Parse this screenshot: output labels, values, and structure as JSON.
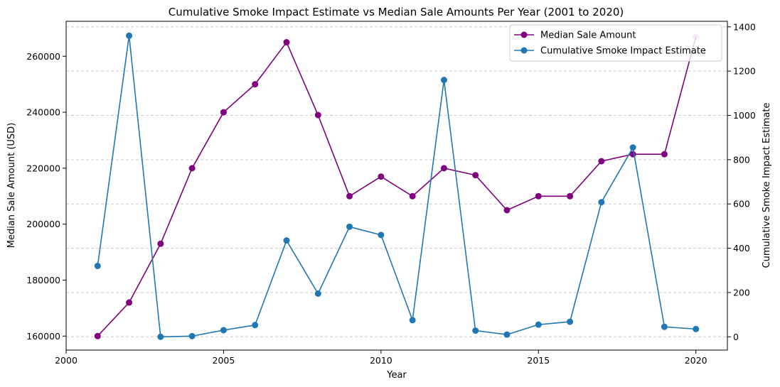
{
  "chart_data": {
    "type": "line",
    "title": "Cumulative Smoke Impact Estimate vs Median Sale Amounts Per Year (2001 to 2020)",
    "xlabel": "Year",
    "ylabel_left": "Median Sale Amount (USD)",
    "ylabel_right": "Cumulative Smoke Impact Estimate",
    "xlim": [
      2000,
      2021
    ],
    "ylim_left": [
      155000,
      272500
    ],
    "ylim_right": [
      -60,
      1425
    ],
    "x_ticks": [
      2000,
      2005,
      2010,
      2015,
      2020
    ],
    "y_left_ticks": [
      160000,
      180000,
      200000,
      220000,
      240000,
      260000
    ],
    "y_right_ticks": [
      0,
      200,
      400,
      600,
      800,
      1000,
      1200,
      1400
    ],
    "grid": "right-axis horizontal dashed",
    "legend_position": "top-right",
    "x": [
      2001,
      2002,
      2003,
      2004,
      2005,
      2006,
      2007,
      2008,
      2009,
      2010,
      2011,
      2012,
      2013,
      2014,
      2015,
      2016,
      2017,
      2018,
      2019,
      2020
    ],
    "series": [
      {
        "name": "Median Sale Amount",
        "axis": "left",
        "color": "#800080",
        "values": [
          160000,
          172000,
          193000,
          220000,
          240000,
          250000,
          265000,
          239000,
          210000,
          217000,
          210000,
          220000,
          217500,
          205000,
          210000,
          210000,
          222500,
          225000,
          225000,
          267000
        ]
      },
      {
        "name": "Cumulative Smoke Impact Estimate",
        "axis": "right",
        "color": "#1f77b4",
        "values": [
          320,
          1360,
          0,
          3,
          30,
          53,
          435,
          195,
          497,
          460,
          75,
          1160,
          28,
          10,
          55,
          68,
          608,
          855,
          45,
          35
        ]
      }
    ]
  }
}
